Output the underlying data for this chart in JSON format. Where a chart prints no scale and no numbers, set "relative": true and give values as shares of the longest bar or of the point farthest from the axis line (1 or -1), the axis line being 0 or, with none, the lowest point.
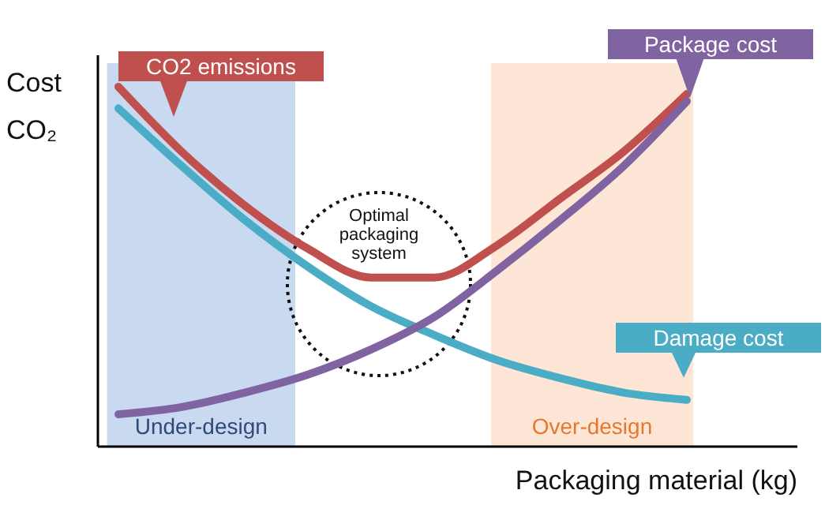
{
  "chart_data": {
    "type": "line",
    "relative": true,
    "xlabel": "Packaging material (kg)",
    "ylabel": "Cost\nCO₂",
    "legend": false,
    "marker": "none",
    "line_style": "solid",
    "categories": [
      null,
      null,
      null,
      null,
      null,
      null,
      null,
      null,
      null,
      null
    ],
    "series": [
      {
        "name": "CO2 emissions",
        "color": "#c0504d",
        "values": [
          1,
          0.82,
          0.67,
          0.55,
          0.47,
          0.47,
          0.56,
          0.69,
          0.82,
          0.98
        ]
      },
      {
        "name": "Damage cost",
        "color": "#4bacc6",
        "values": [
          0.94,
          0.78,
          0.63,
          0.5,
          0.39,
          0.31,
          0.24,
          0.19,
          0.15,
          0.13
        ]
      },
      {
        "name": "Package cost",
        "color": "#8064a2",
        "values": [
          0.09,
          0.11,
          0.15,
          0.2,
          0.27,
          0.36,
          0.49,
          0.63,
          0.78,
          0.96
        ]
      }
    ],
    "annotations": [
      "Optimal packaging system",
      "Under-design",
      "Over-design"
    ]
  }
}
